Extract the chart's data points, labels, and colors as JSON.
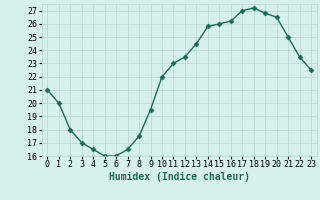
{
  "x": [
    0,
    1,
    2,
    3,
    4,
    5,
    6,
    7,
    8,
    9,
    10,
    11,
    12,
    13,
    14,
    15,
    16,
    17,
    18,
    19,
    20,
    21,
    22,
    23
  ],
  "y": [
    21,
    20,
    18,
    17,
    16.5,
    16,
    16,
    16.5,
    17.5,
    19.5,
    22,
    23,
    23.5,
    24.5,
    25.8,
    26,
    26.2,
    27,
    27.2,
    26.8,
    26.5,
    25,
    23.5,
    22.5
  ],
  "line_color": "#1a6b5a",
  "marker": "D",
  "markersize": 2.5,
  "linewidth": 1.0,
  "bg_color": "#d6f0f0",
  "grid_color": "#b8d4d4",
  "ylim": [
    16,
    27.5
  ],
  "yticks": [
    16,
    17,
    18,
    19,
    20,
    21,
    22,
    23,
    24,
    25,
    26,
    27
  ],
  "xlabel": "Humidex (Indice chaleur)",
  "xlabel_fontsize": 7,
  "tick_fontsize": 6
}
